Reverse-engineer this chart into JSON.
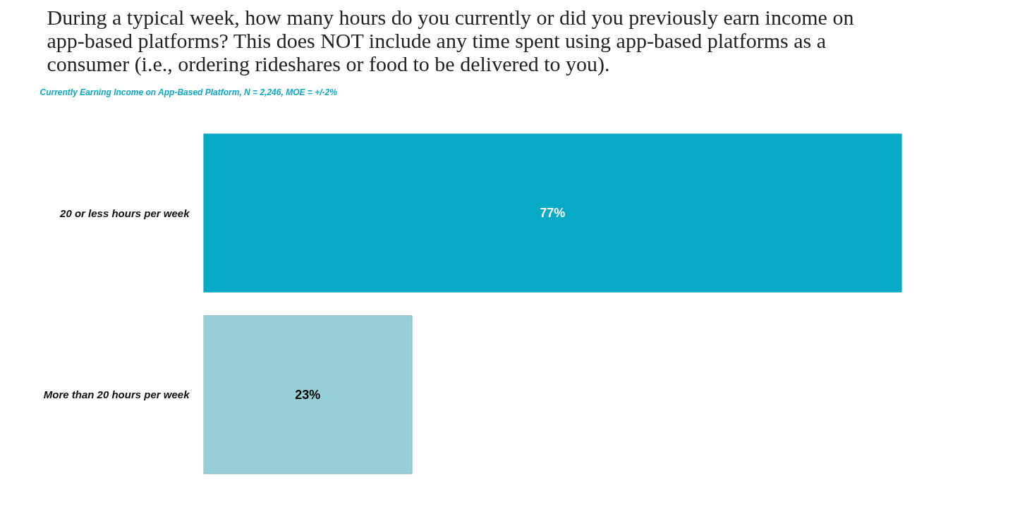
{
  "chart_data": {
    "type": "bar",
    "orientation": "horizontal",
    "title": "During a typical week, how many hours do you currently or did you previously earn income on app-based platforms? This does NOT include any time spent using app-based platforms as a consumer (i.e., ordering rideshares or food to be delivered to you).",
    "subtitle": "Currently Earning Income on App-Based Platform, N = 2,246, MOE = +/-2%",
    "categories": [
      "20 or less hours per week",
      "More than 20 hours per week"
    ],
    "values": [
      77,
      23
    ],
    "colors": [
      "#07abc7",
      "#96cfd8"
    ],
    "value_labels": [
      "77%",
      "23%"
    ],
    "grid": false
  }
}
